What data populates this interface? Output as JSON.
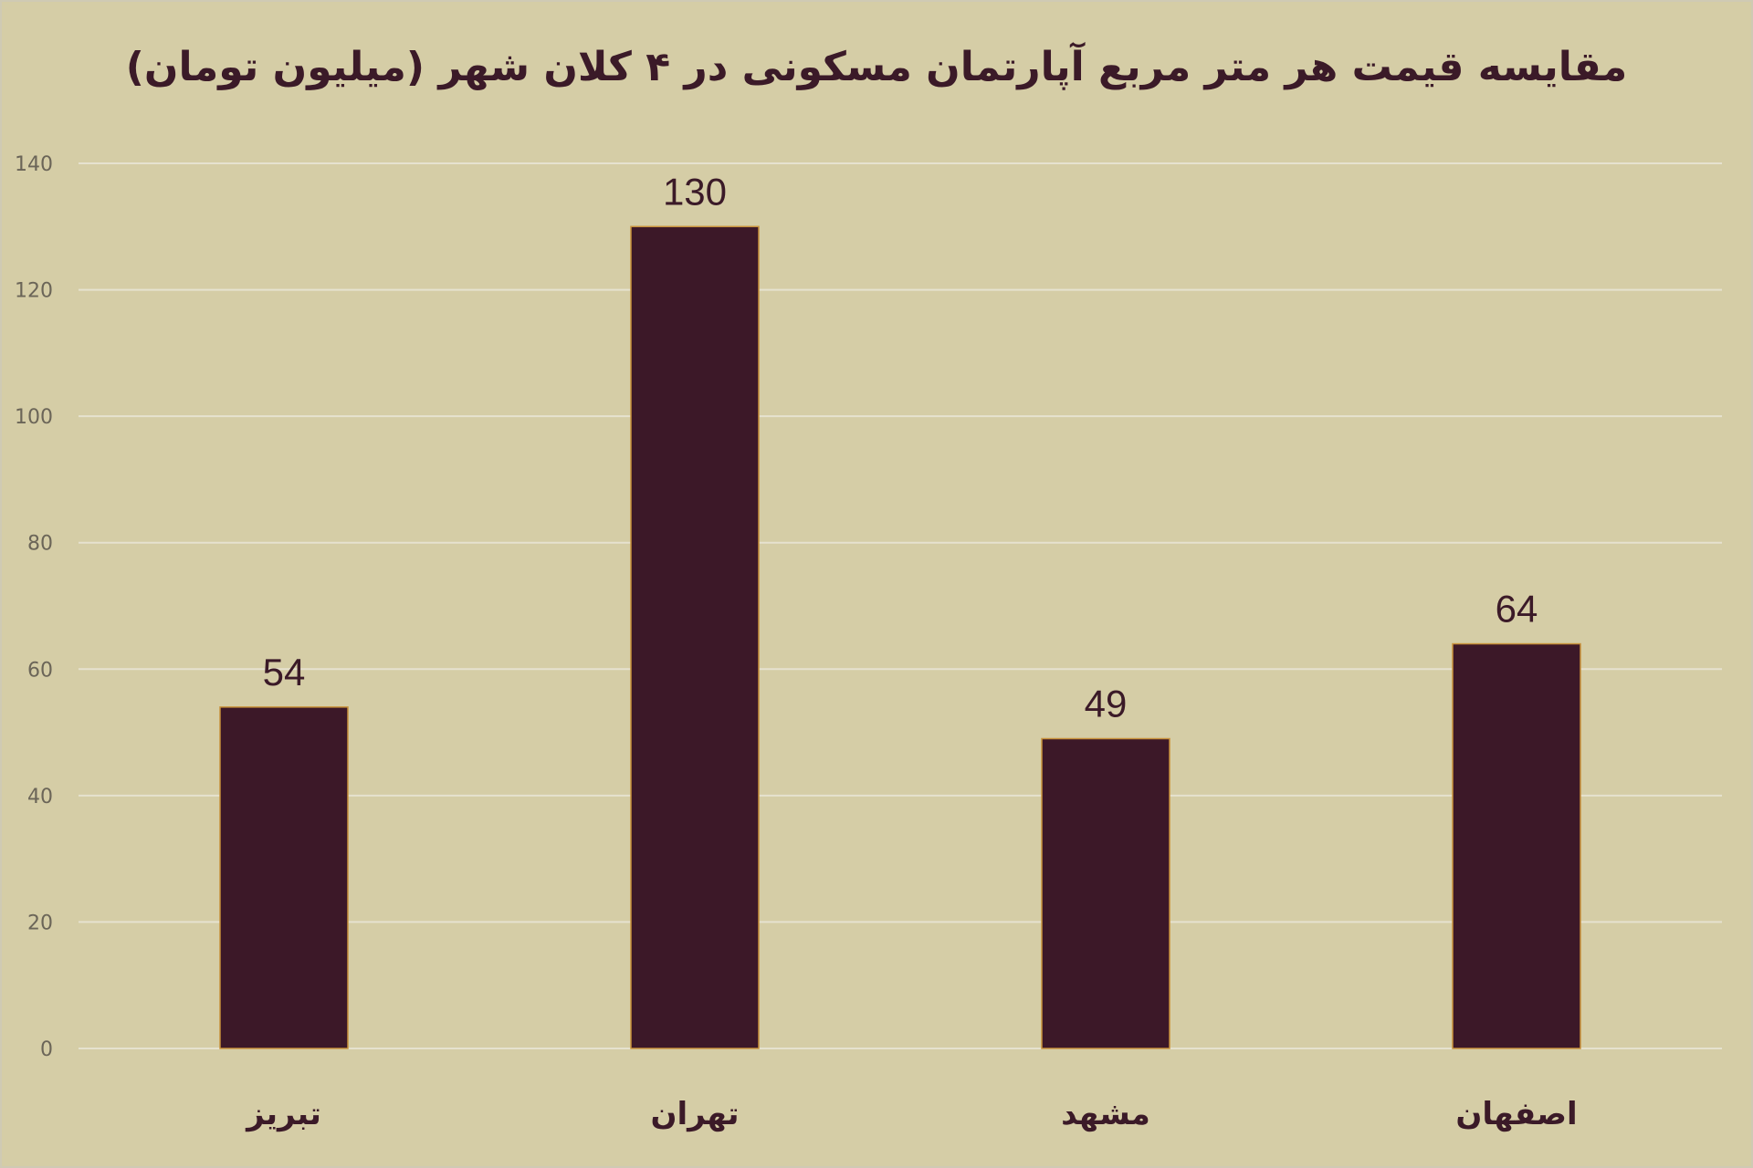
{
  "chart_data": {
    "type": "bar",
    "title": "مقایسه قیمت هر متر مربع آپارتمان مسکونی در ۴ کلان شهر (میلیون تومان)",
    "categories": [
      "تبریز",
      "تهران",
      "مشهد",
      "اصفهان"
    ],
    "values": [
      54,
      130,
      49,
      64
    ],
    "ylim": [
      0,
      140
    ],
    "yticks": [
      0,
      20,
      40,
      60,
      80,
      100,
      120,
      140
    ],
    "grid": true,
    "legend": "none",
    "colors": {
      "bar": "#3c1828",
      "bar_border": "#c8913a",
      "background": "#d5cda6",
      "grid": "#e6e2cf",
      "text": "#3b1a28",
      "tick": "#6b6558"
    }
  }
}
